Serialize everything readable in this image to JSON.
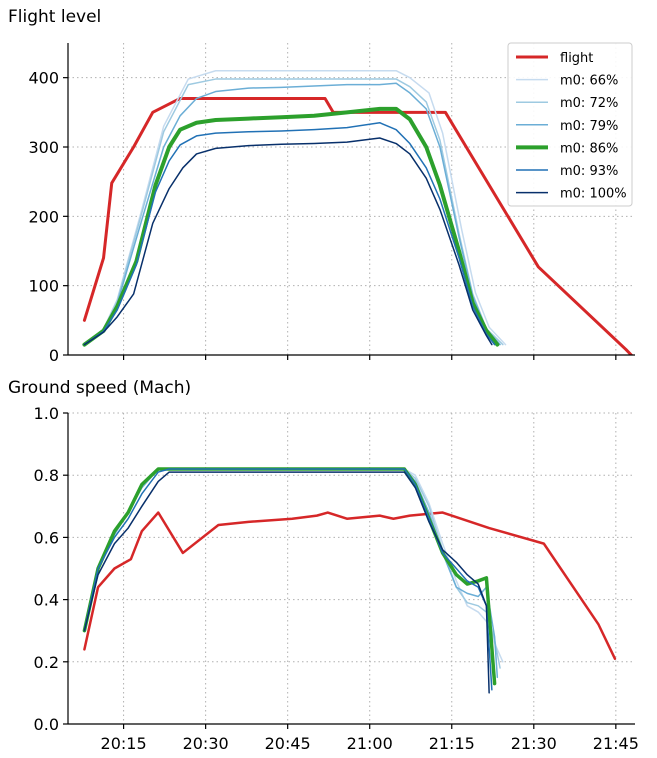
{
  "chart_data": [
    {
      "type": "line",
      "title": "Flight level",
      "x_ticks": [
        "20:15",
        "20:30",
        "20:45",
        "21:00",
        "21:15",
        "21:30",
        "21:45"
      ],
      "x_tick_values": [
        20.25,
        20.5,
        20.75,
        21.0,
        21.25,
        21.5,
        21.75
      ],
      "xlim": [
        20.0806,
        21.8084
      ],
      "ylim": [
        0,
        450
      ],
      "y_ticks": [
        0,
        100,
        200,
        300,
        400
      ],
      "grid": true,
      "legend_position": "top-right",
      "series": [
        {
          "name": "flight",
          "color": "#d62728",
          "width": 3,
          "x": [
            20.1306,
            20.1889,
            20.2139,
            20.2806,
            20.3389,
            20.4222,
            20.5972,
            20.8639,
            20.8889,
            21.0722,
            21.2306,
            21.5139,
            21.7806,
            21.7972
          ],
          "y": [
            50,
            140,
            248,
            300,
            350,
            370,
            370,
            370,
            350,
            350,
            350,
            127,
            8,
            0
          ]
        },
        {
          "name": "m0: 66%",
          "color": "#c6dbef",
          "width": 1.5,
          "x": [
            20.1306,
            20.1889,
            20.2306,
            20.3056,
            20.3722,
            20.4472,
            20.5306,
            20.6306,
            20.7306,
            20.8306,
            20.9306,
            21.0306,
            21.0806,
            21.1222,
            21.1806,
            21.2222,
            21.2806,
            21.3222,
            21.3639,
            21.4139
          ],
          "y": [
            15,
            38,
            80,
            210,
            330,
            398,
            410,
            410,
            410,
            410,
            410,
            410,
            410,
            400,
            378,
            320,
            180,
            90,
            40,
            15
          ]
        },
        {
          "name": "m0: 72%",
          "color": "#9ecae1",
          "width": 1.5,
          "x": [
            20.1306,
            20.1889,
            20.2306,
            20.3056,
            20.3722,
            20.4472,
            20.5306,
            20.6306,
            20.7306,
            20.8306,
            20.9306,
            21.0306,
            21.0806,
            21.1222,
            21.1722,
            21.2139,
            21.2722,
            21.3139,
            21.3556,
            21.4056
          ],
          "y": [
            15,
            37,
            78,
            205,
            322,
            390,
            398,
            398,
            398,
            398,
            398,
            398,
            398,
            387,
            365,
            310,
            175,
            88,
            38,
            15
          ]
        },
        {
          "name": "m0: 79%",
          "color": "#6baed6",
          "width": 1.5,
          "x": [
            20.1306,
            20.1889,
            20.2306,
            20.3056,
            20.3722,
            20.4222,
            20.4722,
            20.5306,
            20.6306,
            20.7306,
            20.8306,
            20.9306,
            21.0306,
            21.0806,
            21.1222,
            21.1722,
            21.2139,
            21.2722,
            21.3139,
            21.3556,
            21.3972
          ],
          "y": [
            15,
            36,
            74,
            195,
            300,
            345,
            370,
            380,
            385,
            386,
            388,
            390,
            390,
            392,
            378,
            355,
            300,
            170,
            85,
            37,
            15
          ]
        },
        {
          "name": "m0: 86%",
          "color": "#2ca02c",
          "width": 4,
          "x": [
            20.1306,
            20.1889,
            20.2306,
            20.2889,
            20.3472,
            20.3889,
            20.4222,
            20.4722,
            20.5306,
            20.6306,
            20.7306,
            20.8306,
            20.9306,
            21.0306,
            21.0806,
            21.1222,
            21.1722,
            21.2139,
            21.2722,
            21.3139,
            21.3556,
            21.3889
          ],
          "y": [
            15,
            35,
            70,
            135,
            245,
            300,
            325,
            335,
            339,
            341,
            343,
            345,
            350,
            355,
            355,
            340,
            300,
            245,
            150,
            75,
            35,
            15
          ]
        },
        {
          "name": "m0: 93%",
          "color": "#2171b5",
          "width": 1.5,
          "x": [
            20.1306,
            20.1889,
            20.2306,
            20.2889,
            20.3472,
            20.3889,
            20.4222,
            20.4722,
            20.5306,
            20.6306,
            20.7306,
            20.8306,
            20.9306,
            21.0306,
            21.0806,
            21.1222,
            21.1722,
            21.2139,
            21.2722,
            21.3139,
            21.3556,
            21.3806
          ],
          "y": [
            15,
            34,
            65,
            130,
            235,
            280,
            303,
            316,
            320,
            322,
            323,
            325,
            328,
            335,
            325,
            305,
            270,
            225,
            140,
            70,
            30,
            15
          ]
        },
        {
          "name": "m0: 100%",
          "color": "#08306b",
          "width": 1.5,
          "x": [
            20.1306,
            20.1889,
            20.2306,
            20.2806,
            20.3389,
            20.3889,
            20.4306,
            20.4722,
            20.5306,
            20.6306,
            20.7306,
            20.8306,
            20.9306,
            21.0306,
            21.0806,
            21.1222,
            21.1722,
            21.2139,
            21.2722,
            21.3139,
            21.3556,
            21.3722
          ],
          "y": [
            15,
            33,
            55,
            88,
            190,
            240,
            270,
            290,
            298,
            302,
            304,
            305,
            307,
            313,
            305,
            290,
            255,
            210,
            130,
            65,
            28,
            15
          ]
        }
      ]
    },
    {
      "type": "line",
      "title": "Ground speed (Mach)",
      "x_ticks": [
        "20:15",
        "20:30",
        "20:45",
        "21:00",
        "21:15",
        "21:30",
        "21:45"
      ],
      "x_tick_values": [
        20.25,
        20.5,
        20.75,
        21.0,
        21.25,
        21.5,
        21.75
      ],
      "xlim": [
        20.0806,
        21.8084
      ],
      "ylim": [
        0,
        1.0
      ],
      "y_ticks": [
        "0.0",
        "0.2",
        "0.4",
        "0.6",
        "0.8",
        "1.0"
      ],
      "grid": true,
      "series": [
        {
          "name": "flight",
          "color": "#d62728",
          "width": 2.5,
          "x": [
            20.1306,
            20.1722,
            20.2222,
            20.2722,
            20.3056,
            20.3556,
            20.4306,
            20.5389,
            20.6306,
            20.7639,
            20.8389,
            20.8722,
            20.9306,
            21.0306,
            21.0722,
            21.1222,
            21.2222,
            21.3639,
            21.5306,
            21.6972,
            21.7472
          ],
          "y": [
            0.24,
            0.44,
            0.5,
            0.53,
            0.62,
            0.68,
            0.55,
            0.64,
            0.65,
            0.66,
            0.67,
            0.68,
            0.66,
            0.67,
            0.66,
            0.67,
            0.68,
            0.63,
            0.58,
            0.32,
            0.21
          ]
        },
        {
          "name": "m0: 66%",
          "color": "#c6dbef",
          "width": 1.5,
          "x": [
            20.1306,
            20.1722,
            20.2222,
            20.2639,
            20.3056,
            20.3556,
            20.3889,
            20.4806,
            20.6306,
            20.7806,
            20.9306,
            21.0806,
            21.1056,
            21.1389,
            21.1806,
            21.2222,
            21.2639,
            21.2972,
            21.3306,
            21.3556,
            21.3806,
            21.4056
          ],
          "y": [
            0.3,
            0.5,
            0.61,
            0.68,
            0.76,
            0.82,
            0.82,
            0.82,
            0.82,
            0.82,
            0.82,
            0.82,
            0.82,
            0.8,
            0.71,
            0.58,
            0.46,
            0.38,
            0.36,
            0.33,
            0.26,
            0.2
          ]
        },
        {
          "name": "m0: 72%",
          "color": "#9ecae1",
          "width": 1.5,
          "x": [
            20.1306,
            20.1722,
            20.2222,
            20.2639,
            20.3056,
            20.3556,
            20.3889,
            20.4806,
            20.6306,
            20.7806,
            20.9306,
            21.0806,
            21.1056,
            21.1389,
            21.1806,
            21.2222,
            21.2639,
            21.2972,
            21.3306,
            21.3556,
            21.3806,
            21.3972
          ],
          "y": [
            0.3,
            0.5,
            0.61,
            0.68,
            0.76,
            0.82,
            0.82,
            0.82,
            0.82,
            0.82,
            0.82,
            0.82,
            0.82,
            0.79,
            0.7,
            0.56,
            0.44,
            0.39,
            0.38,
            0.36,
            0.27,
            0.18
          ]
        },
        {
          "name": "m0: 79%",
          "color": "#6baed6",
          "width": 1.5,
          "x": [
            20.1306,
            20.1722,
            20.2222,
            20.2639,
            20.3056,
            20.3556,
            20.3889,
            20.4806,
            20.6306,
            20.7806,
            20.9306,
            21.0806,
            21.1056,
            21.1389,
            21.1806,
            21.2222,
            21.2639,
            21.2972,
            21.3306,
            21.3556,
            21.3806,
            21.3889
          ],
          "y": [
            0.3,
            0.5,
            0.61,
            0.68,
            0.76,
            0.82,
            0.82,
            0.82,
            0.82,
            0.82,
            0.82,
            0.82,
            0.82,
            0.78,
            0.68,
            0.55,
            0.44,
            0.42,
            0.41,
            0.44,
            0.28,
            0.15
          ]
        },
        {
          "name": "m0: 86%",
          "color": "#2ca02c",
          "width": 3.5,
          "x": [
            20.1306,
            20.1722,
            20.2222,
            20.2639,
            20.3056,
            20.3556,
            20.3889,
            20.4806,
            20.6306,
            20.7806,
            20.9306,
            21.0806,
            21.1056,
            21.1389,
            21.1806,
            21.2222,
            21.2639,
            21.2972,
            21.3306,
            21.3556,
            21.3806
          ],
          "y": [
            0.3,
            0.5,
            0.62,
            0.68,
            0.77,
            0.82,
            0.82,
            0.82,
            0.82,
            0.82,
            0.82,
            0.82,
            0.82,
            0.77,
            0.66,
            0.55,
            0.48,
            0.45,
            0.46,
            0.47,
            0.13
          ]
        },
        {
          "name": "m0: 93%",
          "color": "#2171b5",
          "width": 1.5,
          "x": [
            20.1306,
            20.1722,
            20.2222,
            20.2639,
            20.3056,
            20.3556,
            20.3889,
            20.4806,
            20.6306,
            20.7806,
            20.9306,
            21.0806,
            21.1056,
            21.1389,
            21.1806,
            21.2222,
            21.2639,
            21.2972,
            21.3306,
            21.3556,
            21.3722
          ],
          "y": [
            0.3,
            0.5,
            0.6,
            0.66,
            0.74,
            0.81,
            0.82,
            0.82,
            0.82,
            0.82,
            0.82,
            0.82,
            0.82,
            0.77,
            0.66,
            0.55,
            0.5,
            0.46,
            0.44,
            0.38,
            0.11
          ]
        },
        {
          "name": "m0: 100%",
          "color": "#08306b",
          "width": 1.5,
          "x": [
            20.1306,
            20.1722,
            20.2222,
            20.2639,
            20.3056,
            20.3556,
            20.3889,
            20.4806,
            20.6306,
            20.7806,
            20.9306,
            21.0806,
            21.1056,
            21.1389,
            21.1806,
            21.2222,
            21.2639,
            21.2972,
            21.3306,
            21.3556,
            21.3639
          ],
          "y": [
            0.3,
            0.48,
            0.58,
            0.63,
            0.7,
            0.78,
            0.81,
            0.81,
            0.81,
            0.81,
            0.81,
            0.81,
            0.81,
            0.76,
            0.65,
            0.56,
            0.52,
            0.48,
            0.45,
            0.38,
            0.1
          ]
        }
      ]
    }
  ]
}
